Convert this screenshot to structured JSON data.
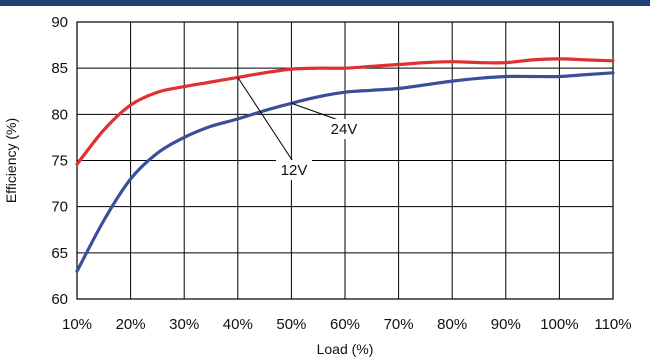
{
  "chart_data": {
    "type": "line",
    "title": "",
    "xlabel": "Load (%)",
    "ylabel": "Efficiency (%)",
    "xlim": [
      10,
      110
    ],
    "ylim": [
      60,
      90
    ],
    "x_ticks": [
      "10%",
      "20%",
      "30%",
      "40%",
      "50%",
      "60%",
      "70%",
      "80%",
      "90%",
      "100%",
      "110%"
    ],
    "y_ticks": [
      "60",
      "65",
      "70",
      "75",
      "80",
      "85",
      "90"
    ],
    "grid": true,
    "series": [
      {
        "name": "24V",
        "color": "#e03030",
        "x": [
          10,
          15,
          20,
          25,
          30,
          35,
          40,
          45,
          50,
          55,
          60,
          65,
          70,
          75,
          80,
          85,
          90,
          95,
          100,
          105,
          110
        ],
        "y": [
          74.6,
          78.3,
          81.0,
          82.4,
          83.0,
          83.5,
          84.0,
          84.5,
          84.9,
          85.0,
          85.0,
          85.2,
          85.4,
          85.6,
          85.7,
          85.6,
          85.6,
          85.9,
          86.0,
          85.9,
          85.8
        ]
      },
      {
        "name": "12V",
        "color": "#3a4f9a",
        "x": [
          10,
          15,
          20,
          25,
          30,
          35,
          40,
          45,
          50,
          55,
          60,
          65,
          70,
          75,
          80,
          85,
          90,
          95,
          100,
          105,
          110
        ],
        "y": [
          63.0,
          68.5,
          73.0,
          75.8,
          77.5,
          78.7,
          79.5,
          80.4,
          81.2,
          81.9,
          82.4,
          82.6,
          82.8,
          83.2,
          83.6,
          83.9,
          84.1,
          84.1,
          84.1,
          84.3,
          84.5
        ]
      }
    ],
    "callouts": [
      {
        "label": "24V",
        "series": "24V"
      },
      {
        "label": "12V",
        "series": "12V"
      }
    ]
  }
}
